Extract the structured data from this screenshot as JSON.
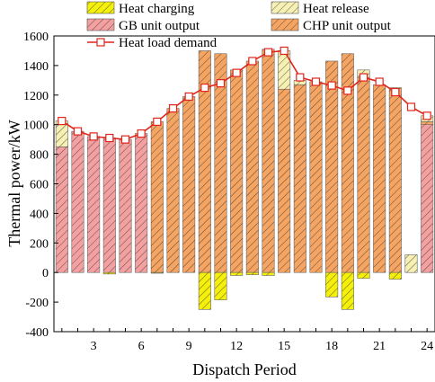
{
  "chart_data": {
    "type": "bar",
    "xlabel": "Dispatch Period",
    "ylabel": "Thermal power/kW",
    "ylim": [
      -400,
      1600
    ],
    "xlim": [
      0.5,
      24.5
    ],
    "yticks": [
      -400,
      -200,
      0,
      200,
      400,
      600,
      800,
      1000,
      1200,
      1400,
      1600
    ],
    "xticks": [
      3,
      6,
      9,
      12,
      15,
      18,
      21,
      24
    ],
    "x": [
      1,
      2,
      3,
      4,
      5,
      6,
      7,
      8,
      9,
      10,
      11,
      12,
      13,
      14,
      15,
      16,
      17,
      18,
      19,
      20,
      21,
      22,
      23,
      24
    ],
    "legend_position": "top",
    "series": [
      {
        "name": "GB unit output",
        "color": "#f4a0a0",
        "hatch": "diagonal",
        "values": [
          850,
          955,
          920,
          910,
          900,
          940,
          0,
          0,
          0,
          0,
          0,
          0,
          0,
          0,
          0,
          0,
          0,
          0,
          0,
          0,
          0,
          0,
          0,
          1000
        ]
      },
      {
        "name": "CHP unit output",
        "color": "#f5a461",
        "hatch": "diagonal",
        "values": [
          0,
          0,
          0,
          0,
          0,
          0,
          1020,
          1110,
          1190,
          1500,
          1480,
          1370,
          1430,
          1510,
          1240,
          1270,
          1290,
          1430,
          1480,
          1320,
          1270,
          1250,
          0,
          20
        ]
      },
      {
        "name": "Heat release",
        "color": "#f7f0b3",
        "hatch": "diagonal",
        "values": [
          175,
          0,
          0,
          0,
          0,
          0,
          0,
          0,
          0,
          0,
          0,
          0,
          0,
          0,
          260,
          30,
          0,
          0,
          0,
          50,
          0,
          0,
          120,
          40
        ]
      },
      {
        "name": "Heat charging",
        "color": "#f5f00a",
        "hatch": "diagonal",
        "values": [
          0,
          0,
          0,
          -10,
          0,
          0,
          -5,
          0,
          0,
          -250,
          -185,
          -20,
          -15,
          -20,
          0,
          0,
          0,
          -165,
          -250,
          -40,
          0,
          -45,
          0,
          0
        ]
      },
      {
        "name": "Heat load demand",
        "type": "line",
        "color": "#e0251b",
        "marker": "open-square",
        "values": [
          1025,
          955,
          920,
          910,
          900,
          940,
          1020,
          1110,
          1190,
          1250,
          1280,
          1350,
          1430,
          1490,
          1500,
          1320,
          1290,
          1265,
          1230,
          1320,
          1290,
          1220,
          1120,
          1060
        ]
      }
    ]
  }
}
